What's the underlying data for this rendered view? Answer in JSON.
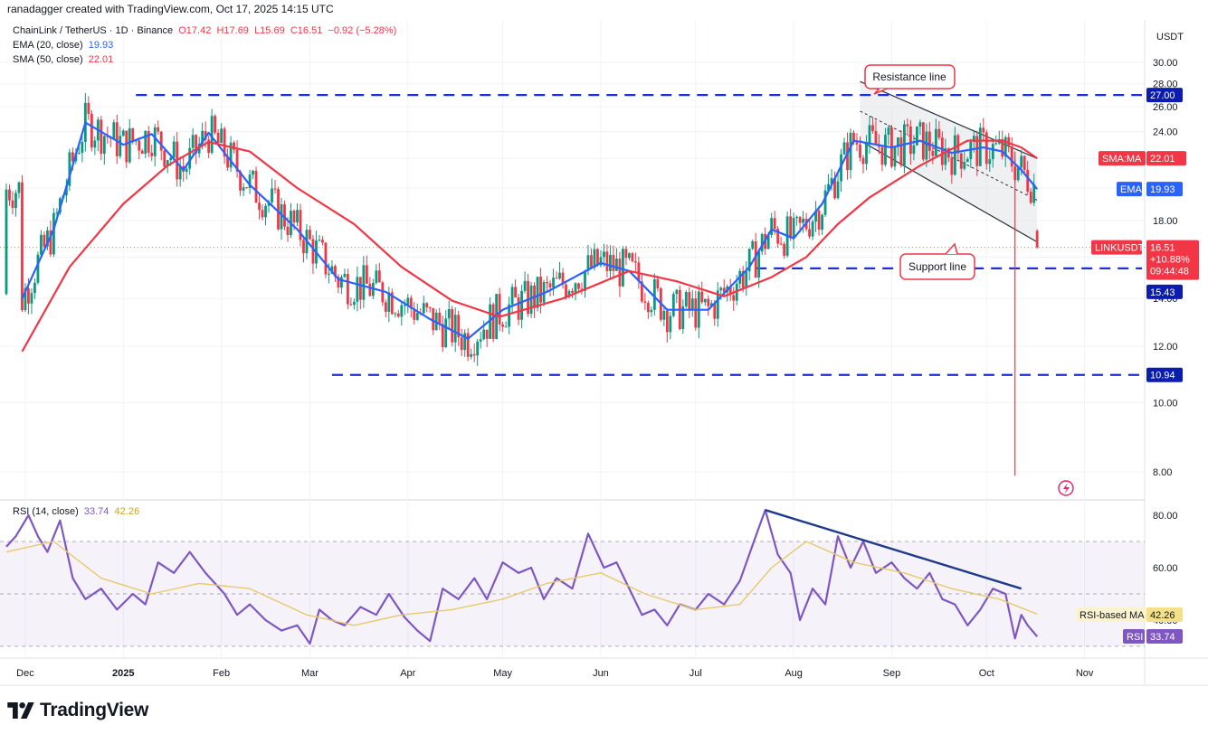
{
  "header": {
    "attribution": "ranadagger created with TradingView.com, Oct 17, 2025 14:15 UTC"
  },
  "legend": {
    "symbol": "ChainLink / TetherUS · 1D · Binance",
    "o": "O17.42",
    "h": "H17.69",
    "l": "L15.69",
    "c": "C16.51",
    "change": "−0.92 (−5.28%)",
    "ema_label": "EMA (20, close)",
    "ema_value": "19.93",
    "sma_label": "SMA (50, close)",
    "sma_value": "22.01",
    "rsi_label": "RSI (14, close)",
    "rsi_value": "33.74",
    "rsi_ma_value": "42.26"
  },
  "currency": "USDT",
  "price_axis": [
    "30.00",
    "28.00",
    "26.00",
    "24.00",
    "22.00",
    "20.00",
    "18.00",
    "16.00",
    "14.00",
    "12.00",
    "10.00",
    "8.00"
  ],
  "rsi_axis": [
    "80.00",
    "60.00",
    "40.00"
  ],
  "time_axis": [
    "Dec",
    "2025",
    "Feb",
    "Mar",
    "Apr",
    "May",
    "Jun",
    "Jul",
    "Aug",
    "Sep",
    "Oct",
    "Nov"
  ],
  "annotations": {
    "resistance": "Resistance line",
    "support": "Support line"
  },
  "badges": {
    "level_27": "27.00",
    "sma_tag": "SMA:MA",
    "sma_val": "22.01",
    "ema_tag": "EMA",
    "ema_val": "19.93",
    "last_tag": "LINKUSDT",
    "last_val": "16.51",
    "last_pct": "+10.88%",
    "last_time": "09:44:48",
    "level_1543": "15.43",
    "level_1094": "10.94",
    "rsima_tag": "RSI-based MA",
    "rsima_val": "42.26",
    "rsi_tag": "RSI",
    "rsi_val": "33.74"
  },
  "brand": "TradingView",
  "colors": {
    "up": "#089981",
    "down": "#f23645",
    "ema": "#2962ff",
    "sma": "#f23645",
    "rsi": "#7e57c2",
    "rsima": "#e8c96a",
    "level": "#1c2fd6",
    "channel": "#e3e6ea"
  },
  "chart_data": [
    {
      "type": "candlestick",
      "title": "ChainLink / TetherUS · 1D · Binance",
      "ylabel": "USDT",
      "ylim": [
        7.5,
        31
      ],
      "log_scale": true,
      "horizontal_levels": [
        27.0,
        15.43,
        10.94
      ],
      "series": [
        {
          "name": "EMA (20, close)",
          "last": 19.93,
          "x": [
            "2024-11-30",
            "2024-12-10",
            "2024-12-20",
            "2025-01-01",
            "2025-01-10",
            "2025-01-20",
            "2025-01-28",
            "2025-02-10",
            "2025-02-25",
            "2025-03-10",
            "2025-03-25",
            "2025-04-08",
            "2025-04-20",
            "2025-05-01",
            "2025-05-15",
            "2025-06-01",
            "2025-06-10",
            "2025-06-22",
            "2025-07-05",
            "2025-07-18",
            "2025-07-25",
            "2025-08-01",
            "2025-08-10",
            "2025-08-20",
            "2025-09-01",
            "2025-09-10",
            "2025-09-20",
            "2025-09-30",
            "2025-10-06",
            "2025-10-12",
            "2025-10-17"
          ],
          "y": [
            14.0,
            17.5,
            24.7,
            23.0,
            23.8,
            21.2,
            23.9,
            20.2,
            17.5,
            14.9,
            14.3,
            13.1,
            12.3,
            13.5,
            14.3,
            15.7,
            15.3,
            13.5,
            13.5,
            15.5,
            17.5,
            17.0,
            19.0,
            23.3,
            22.8,
            23.3,
            22.4,
            22.8,
            22.5,
            21.2,
            19.93
          ]
        },
        {
          "name": "SMA (50, close)",
          "last": 22.01,
          "x": [
            "2024-11-30",
            "2024-12-15",
            "2025-01-01",
            "2025-01-15",
            "2025-01-28",
            "2025-02-10",
            "2025-02-25",
            "2025-03-15",
            "2025-03-30",
            "2025-04-15",
            "2025-04-30",
            "2025-05-20",
            "2025-06-10",
            "2025-06-25",
            "2025-07-10",
            "2025-07-25",
            "2025-08-05",
            "2025-08-15",
            "2025-08-25",
            "2025-09-10",
            "2025-09-25",
            "2025-10-06",
            "2025-10-12",
            "2025-10-17"
          ],
          "y": [
            11.8,
            15.5,
            19.0,
            21.5,
            23.2,
            22.5,
            20.0,
            17.8,
            15.5,
            13.9,
            13.2,
            14.0,
            15.3,
            14.8,
            14.1,
            15.0,
            16.0,
            17.8,
            19.4,
            21.5,
            23.3,
            23.3,
            22.8,
            22.01
          ]
        }
      ],
      "channel": {
        "resistance": {
          "x": [
            "2025-08-22",
            "2025-10-17"
          ],
          "y": [
            28.2,
            22.0
          ]
        },
        "support": {
          "x": [
            "2025-08-22",
            "2025-10-17"
          ],
          "y": [
            23.3,
            16.8
          ]
        }
      },
      "last": {
        "open": 17.42,
        "high": 17.69,
        "low": 15.69,
        "close": 16.51,
        "change": -0.92,
        "change_pct": -5.28
      }
    },
    {
      "type": "line",
      "title": "RSI (14, close)",
      "ylim": [
        30,
        90
      ],
      "bands": [
        70,
        50,
        30
      ],
      "series": [
        {
          "name": "RSI",
          "last": 33.74,
          "x": [
            "2024-11-25",
            "2024-11-28",
            "2024-12-02",
            "2024-12-05",
            "2024-12-08",
            "2024-12-12",
            "2024-12-16",
            "2024-12-20",
            "2024-12-25",
            "2024-12-30",
            "2025-01-04",
            "2025-01-08",
            "2025-01-12",
            "2025-01-17",
            "2025-01-22",
            "2025-01-27",
            "2025-02-02",
            "2025-02-06",
            "2025-02-10",
            "2025-02-15",
            "2025-02-20",
            "2025-02-25",
            "2025-03-01",
            "2025-03-04",
            "2025-03-08",
            "2025-03-12",
            "2025-03-17",
            "2025-03-22",
            "2025-03-26",
            "2025-03-31",
            "2025-04-04",
            "2025-04-08",
            "2025-04-12",
            "2025-04-17",
            "2025-04-22",
            "2025-04-26",
            "2025-05-01",
            "2025-05-06",
            "2025-05-10",
            "2025-05-14",
            "2025-05-18",
            "2025-05-23",
            "2025-05-28",
            "2025-06-02",
            "2025-06-06",
            "2025-06-10",
            "2025-06-14",
            "2025-06-18",
            "2025-06-22",
            "2025-06-26",
            "2025-07-01",
            "2025-07-05",
            "2025-07-10",
            "2025-07-15",
            "2025-07-20",
            "2025-07-23",
            "2025-07-27",
            "2025-07-31",
            "2025-08-03",
            "2025-08-07",
            "2025-08-11",
            "2025-08-15",
            "2025-08-19",
            "2025-08-23",
            "2025-08-27",
            "2025-09-01",
            "2025-09-05",
            "2025-09-09",
            "2025-09-13",
            "2025-09-17",
            "2025-09-21",
            "2025-09-25",
            "2025-09-29",
            "2025-10-03",
            "2025-10-07",
            "2025-10-10",
            "2025-10-12",
            "2025-10-14",
            "2025-10-17"
          ],
          "y": [
            68,
            72,
            80,
            72,
            66,
            78,
            56,
            48,
            52,
            44,
            50,
            46,
            62,
            58,
            66,
            58,
            50,
            42,
            46,
            40,
            36,
            38,
            31,
            44,
            40,
            38,
            45,
            42,
            50,
            41,
            36,
            32,
            52,
            48,
            56,
            48,
            62,
            58,
            60,
            48,
            56,
            52,
            73,
            60,
            62,
            52,
            42,
            44,
            38,
            46,
            44,
            50,
            46,
            55,
            72,
            82,
            65,
            58,
            40,
            52,
            46,
            72,
            60,
            70,
            58,
            62,
            56,
            52,
            58,
            48,
            46,
            38,
            44,
            52,
            50,
            33,
            42,
            38,
            33.74
          ]
        },
        {
          "name": "RSI-based MA",
          "last": 42.26,
          "x": [
            "2024-11-25",
            "2024-12-10",
            "2024-12-25",
            "2025-01-10",
            "2025-01-25",
            "2025-02-10",
            "2025-02-28",
            "2025-03-15",
            "2025-03-30",
            "2025-04-15",
            "2025-05-01",
            "2025-05-15",
            "2025-06-01",
            "2025-06-15",
            "2025-07-01",
            "2025-07-15",
            "2025-07-25",
            "2025-08-05",
            "2025-08-20",
            "2025-09-05",
            "2025-09-20",
            "2025-10-05",
            "2025-10-17"
          ],
          "y": [
            66,
            70,
            56,
            50,
            54,
            52,
            42,
            38,
            42,
            44,
            48,
            54,
            58,
            50,
            44,
            46,
            60,
            70,
            62,
            58,
            52,
            48,
            42.26
          ]
        }
      ],
      "divergence": {
        "x": [
          "2025-07-23",
          "2025-10-12"
        ],
        "y": [
          82,
          52
        ]
      }
    }
  ]
}
